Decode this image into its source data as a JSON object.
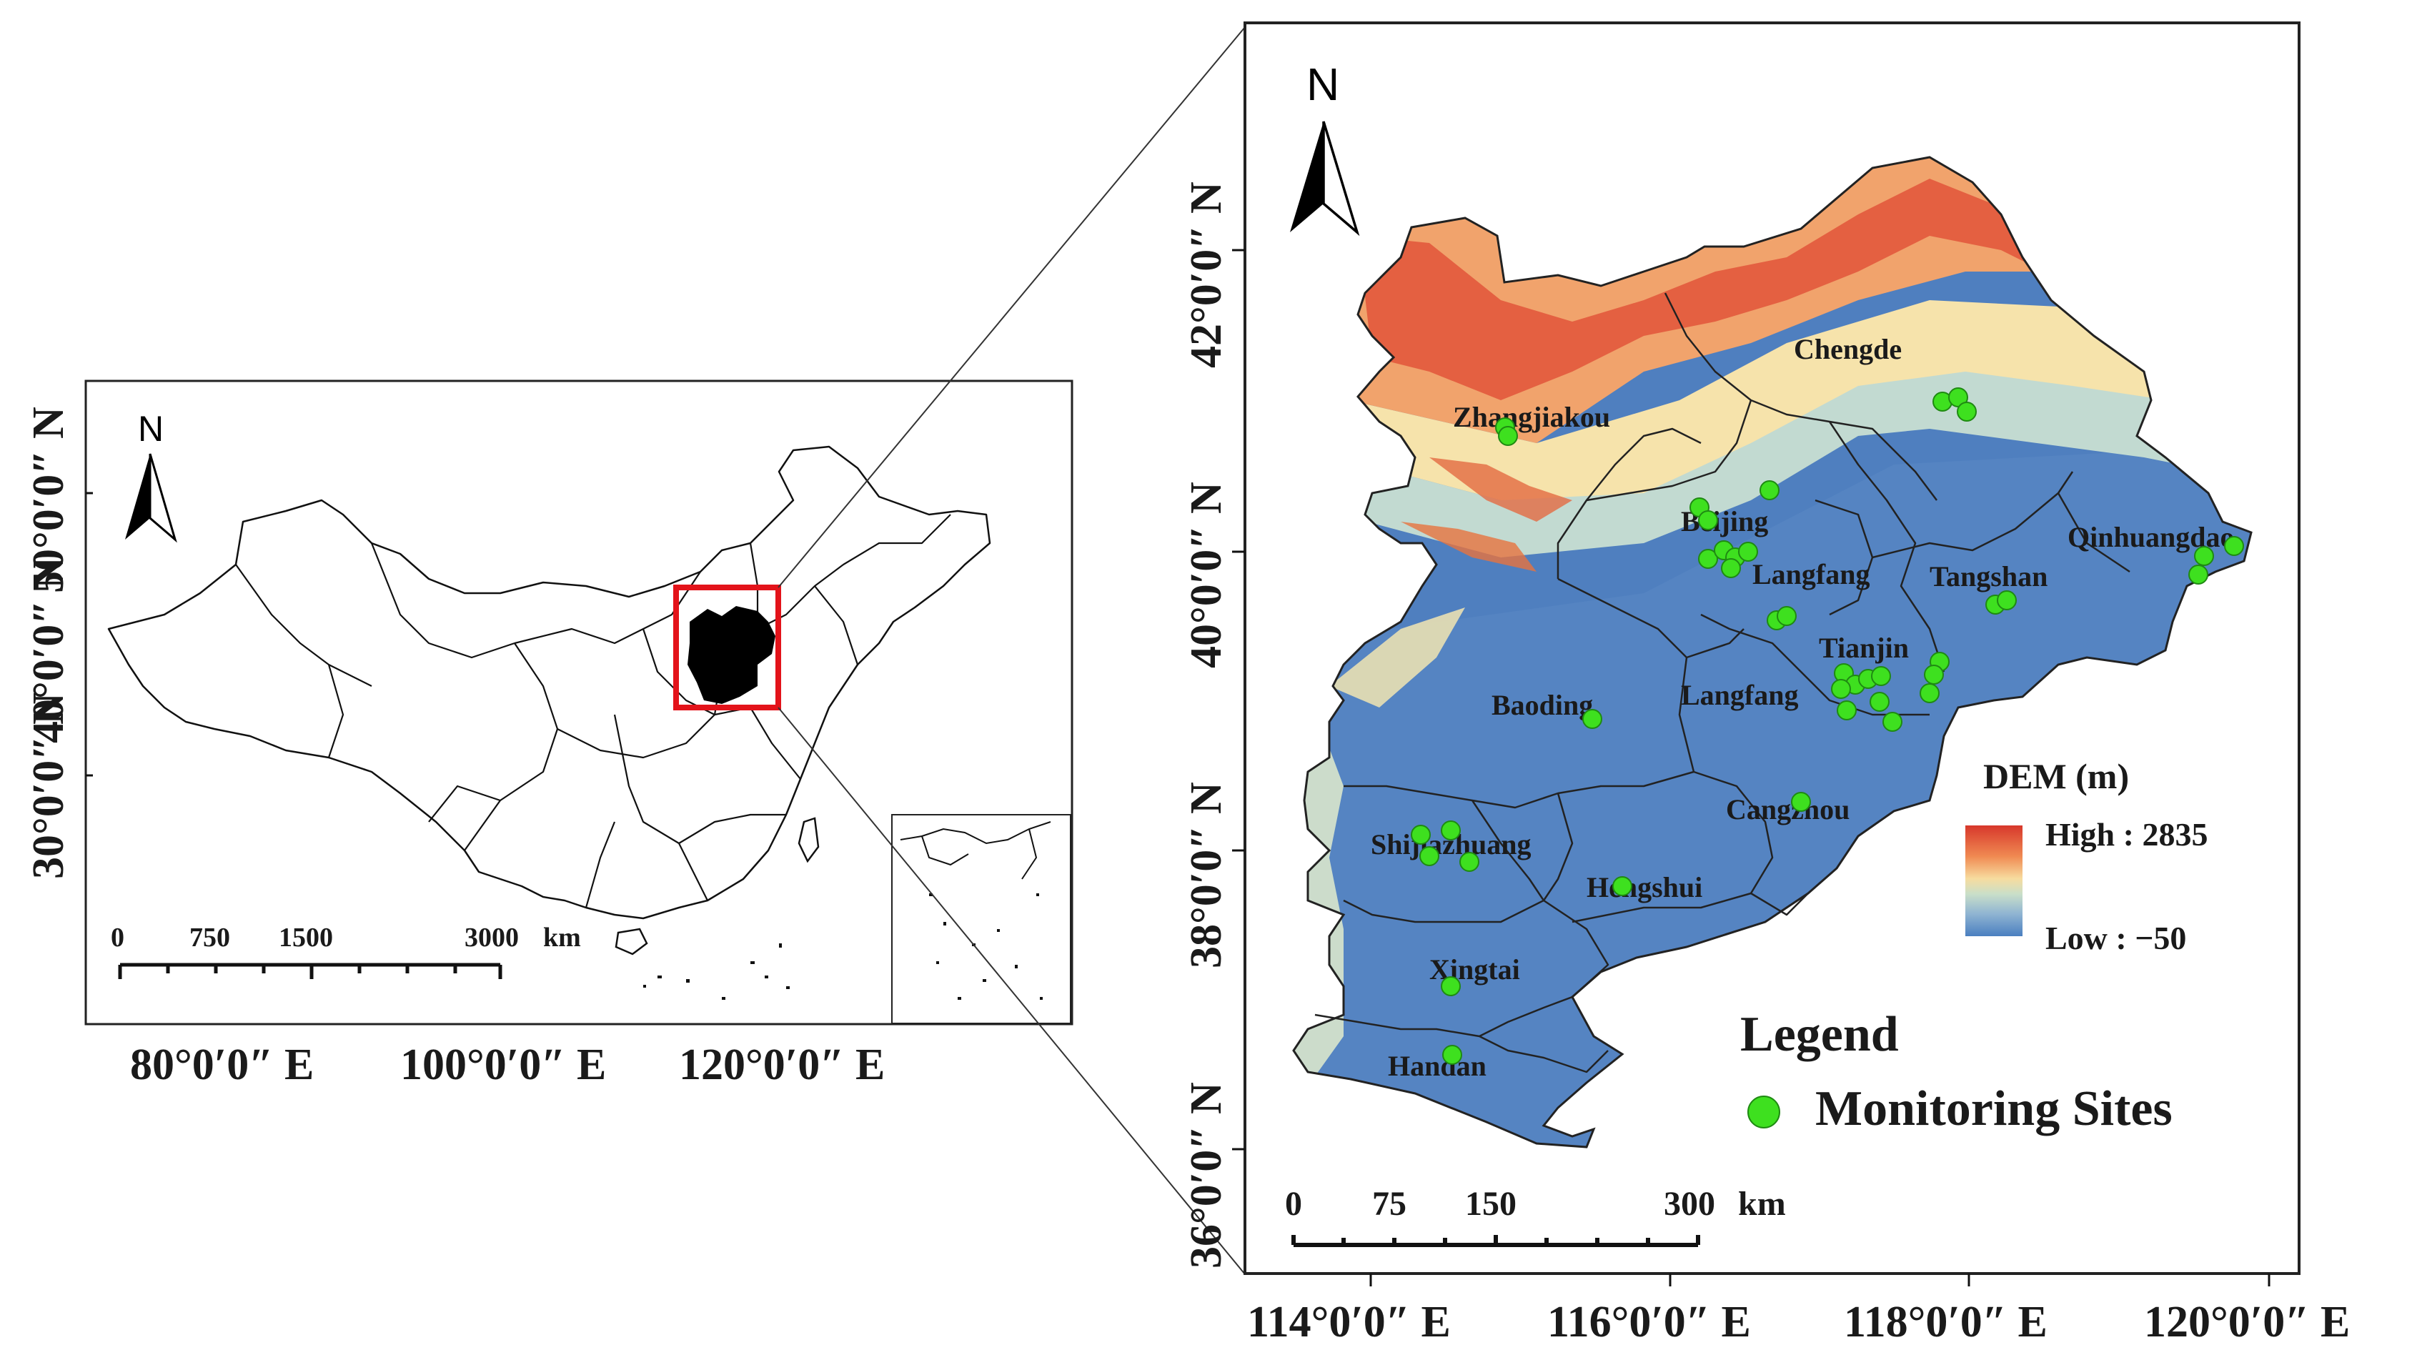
{
  "overview_map": {
    "north_label": "N",
    "lon_labels": [
      "80°0′0″ E",
      "100°0′0″ E",
      "120°0′0″ E"
    ],
    "lat_labels": [
      "30°0′0″ N",
      "40°0′0″ N",
      "50°0′0″ N"
    ],
    "scale_labels": [
      "0",
      "750",
      "1500",
      "3000",
      "km"
    ]
  },
  "detail_map": {
    "north_label": "N",
    "lon_labels": [
      "114°0′0″ E",
      "116°0′0″ E",
      "118°0′0″ E",
      "120°0′0″ E"
    ],
    "lat_labels": [
      "36°0′0″ N",
      "38°0′0″ N",
      "40°0′0″ N",
      "42°0′0″ N"
    ],
    "scale_labels": [
      "0",
      "75",
      "150",
      "300",
      "km"
    ],
    "cities": [
      "Chengde",
      "Zhangjiakou",
      "Beijing",
      "Qinhuangdao",
      "Langfang",
      "Tangshan",
      "Tianjin",
      "Baoding",
      "Langfang",
      "Cangzhou",
      "Shijiazhuang",
      "Hengshui",
      "Xingtai",
      "Handan"
    ]
  },
  "dem_legend": {
    "title": "DEM (m)",
    "high": "High : 2835",
    "low": "Low : −50",
    "colors": [
      "#d7372b",
      "#f08a52",
      "#f7dc9f",
      "#c9dfc9",
      "#8fb4d2",
      "#4a7fc0"
    ]
  },
  "legend": {
    "title": "Legend",
    "item": "Monitoring Sites",
    "site_color": "#3ee01f"
  }
}
